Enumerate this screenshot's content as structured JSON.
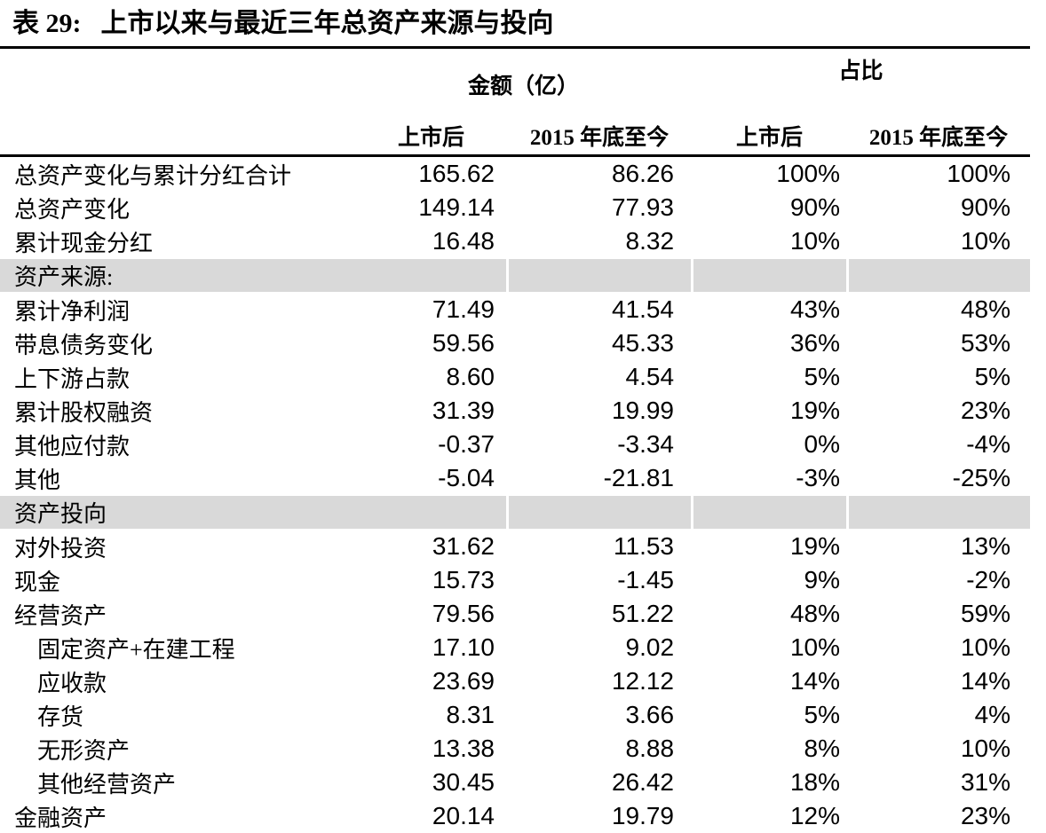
{
  "title": {
    "prefix": "表 29:",
    "text": "上市以来与最近三年总资产来源与投向"
  },
  "table": {
    "group_headers": {
      "amount": "金额（亿）",
      "share": "占比"
    },
    "col_headers": [
      "上市后",
      "2015 年底至今",
      "上市后",
      "2015 年底至今"
    ],
    "rows": [
      {
        "label": "总资产变化与累计分红合计",
        "type": "data",
        "indent": false,
        "values": [
          "165.62",
          "86.26",
          "100%",
          "100%"
        ]
      },
      {
        "label": "总资产变化",
        "type": "data",
        "indent": false,
        "values": [
          "149.14",
          "77.93",
          "90%",
          "90%"
        ]
      },
      {
        "label": "累计现金分红",
        "type": "data",
        "indent": false,
        "values": [
          "16.48",
          "8.32",
          "10%",
          "10%"
        ]
      },
      {
        "label": "资产来源:",
        "type": "section",
        "indent": false,
        "values": []
      },
      {
        "label": "累计净利润",
        "type": "data",
        "indent": false,
        "values": [
          "71.49",
          "41.54",
          "43%",
          "48%"
        ]
      },
      {
        "label": "带息债务变化",
        "type": "data",
        "indent": false,
        "values": [
          "59.56",
          "45.33",
          "36%",
          "53%"
        ]
      },
      {
        "label": "上下游占款",
        "type": "data",
        "indent": false,
        "values": [
          "8.60",
          "4.54",
          "5%",
          "5%"
        ]
      },
      {
        "label": "累计股权融资",
        "type": "data",
        "indent": false,
        "values": [
          "31.39",
          "19.99",
          "19%",
          "23%"
        ]
      },
      {
        "label": "其他应付款",
        "type": "data",
        "indent": false,
        "values": [
          "-0.37",
          "-3.34",
          "0%",
          "-4%"
        ]
      },
      {
        "label": "其他",
        "type": "data",
        "indent": false,
        "values": [
          "-5.04",
          "-21.81",
          "-3%",
          "-25%"
        ]
      },
      {
        "label": "资产投向",
        "type": "section",
        "indent": false,
        "values": []
      },
      {
        "label": "对外投资",
        "type": "data",
        "indent": false,
        "values": [
          "31.62",
          "11.53",
          "19%",
          "13%"
        ]
      },
      {
        "label": "现金",
        "type": "data",
        "indent": false,
        "values": [
          "15.73",
          "-1.45",
          "9%",
          "-2%"
        ]
      },
      {
        "label": "经营资产",
        "type": "data",
        "indent": false,
        "values": [
          "79.56",
          "51.22",
          "48%",
          "59%"
        ]
      },
      {
        "label": "固定资产+在建工程",
        "type": "data",
        "indent": true,
        "values": [
          "17.10",
          "9.02",
          "10%",
          "10%"
        ]
      },
      {
        "label": "应收款",
        "type": "data",
        "indent": true,
        "values": [
          "23.69",
          "12.12",
          "14%",
          "14%"
        ]
      },
      {
        "label": "存货",
        "type": "data",
        "indent": true,
        "values": [
          "8.31",
          "3.66",
          "5%",
          "4%"
        ]
      },
      {
        "label": "无形资产",
        "type": "data",
        "indent": true,
        "values": [
          "13.38",
          "8.88",
          "8%",
          "10%"
        ]
      },
      {
        "label": "其他经营资产",
        "type": "data",
        "indent": true,
        "values": [
          "30.45",
          "26.42",
          "18%",
          "31%"
        ]
      },
      {
        "label": "金融资产",
        "type": "data",
        "indent": false,
        "values": [
          "20.14",
          "19.79",
          "12%",
          "23%"
        ]
      }
    ]
  },
  "colors": {
    "section_bg": "#d9d9d9",
    "rule": "#000000",
    "text": "#000000",
    "background": "#ffffff"
  }
}
